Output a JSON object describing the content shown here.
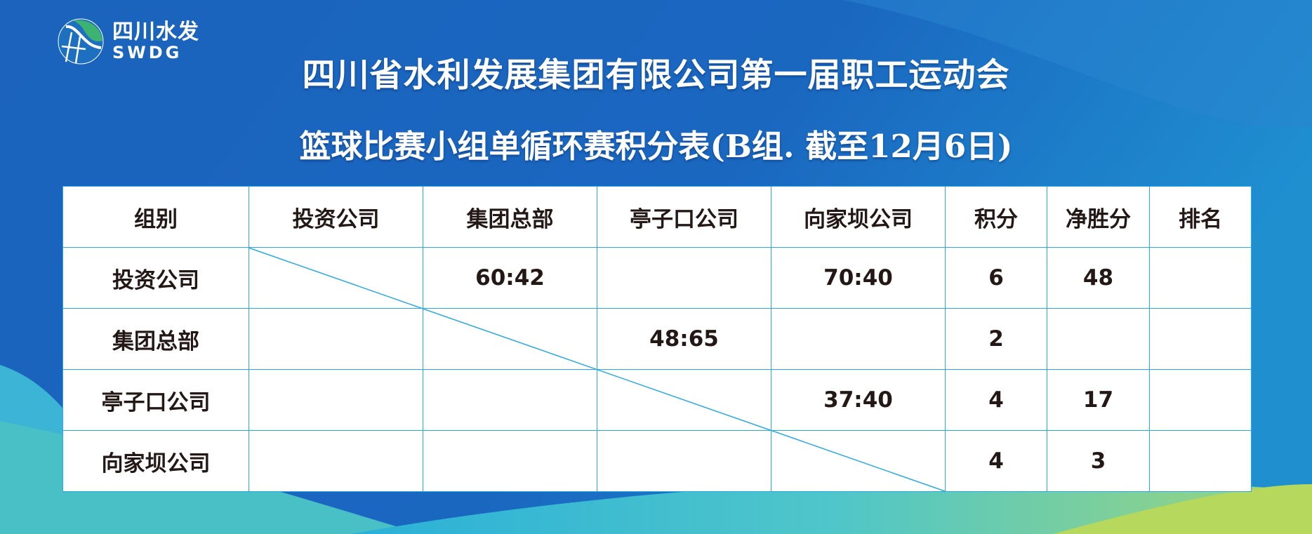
{
  "logo": {
    "cn": "四川水发",
    "en": "SWDG"
  },
  "title": "四川省水利发展集团有限公司第一届职工运动会",
  "subtitle": "篮球比赛小组单循环赛积分表(B组. 截至12月6日)",
  "colors": {
    "background": "#1a5fb8",
    "grid": "#29a9e8",
    "text": "#231815",
    "logo_green": "#3cb371"
  },
  "table": {
    "headers": [
      "组别",
      "投资公司",
      "集团总部",
      "亭子口公司",
      "向家坝公司",
      "积分",
      "净胜分",
      "排名"
    ],
    "rows": [
      [
        "投资公司",
        "",
        "60:42",
        "",
        "70:40",
        "6",
        "48",
        ""
      ],
      [
        "集团总部",
        "",
        "",
        "48:65",
        "",
        "2",
        "",
        ""
      ],
      [
        "亭子口公司",
        "",
        "",
        "",
        "37:40",
        "4",
        "17",
        ""
      ],
      [
        "向家坝公司",
        "",
        "",
        "",
        "",
        "4",
        "3",
        ""
      ]
    ]
  }
}
